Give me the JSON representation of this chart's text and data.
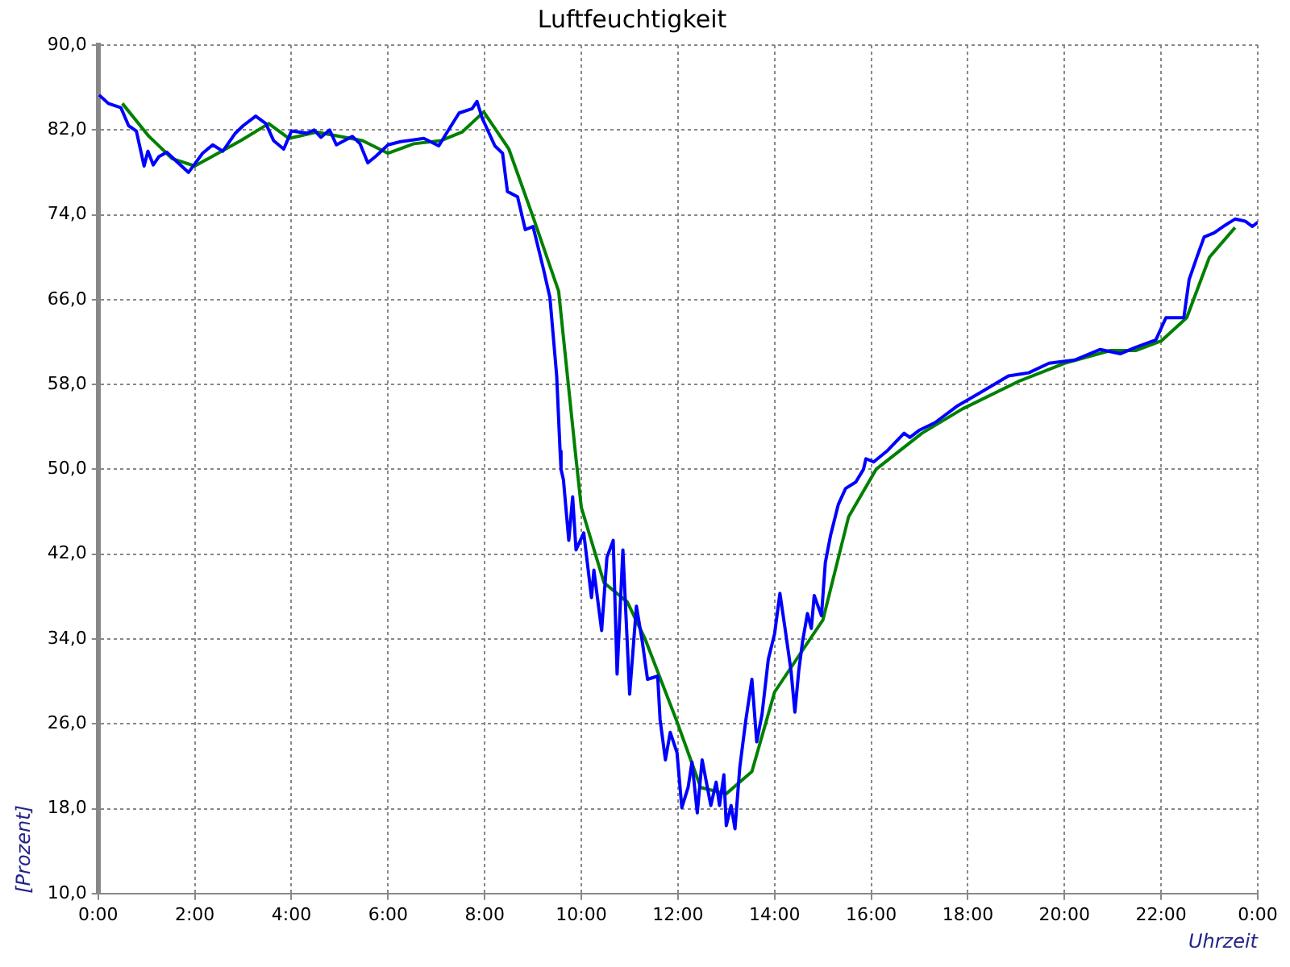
{
  "chart_data": {
    "type": "line",
    "title": "Luftfeuchtigkeit",
    "xlabel": "Uhrzeit",
    "ylabel": "[Prozent]",
    "xlim": [
      0,
      24
    ],
    "xticks": [
      {
        "value": 0,
        "label": "0:00"
      },
      {
        "value": 2,
        "label": "2:00"
      },
      {
        "value": 4,
        "label": "4:00"
      },
      {
        "value": 6,
        "label": "6:00"
      },
      {
        "value": 8,
        "label": "8:00"
      },
      {
        "value": 10,
        "label": "10:00"
      },
      {
        "value": 12,
        "label": "12:00"
      },
      {
        "value": 14,
        "label": "14:00"
      },
      {
        "value": 16,
        "label": "16:00"
      },
      {
        "value": 18,
        "label": "18:00"
      },
      {
        "value": 20,
        "label": "20:00"
      },
      {
        "value": 22,
        "label": "22:00"
      },
      {
        "value": 24,
        "label": "0:00"
      }
    ],
    "ylim": [
      10,
      90
    ],
    "yticks": [
      {
        "value": 10,
        "label": "10,0"
      },
      {
        "value": 18,
        "label": "18,0"
      },
      {
        "value": 26,
        "label": "26,0"
      },
      {
        "value": 34,
        "label": "34,0"
      },
      {
        "value": 42,
        "label": "42,0"
      },
      {
        "value": 50,
        "label": "50,0"
      },
      {
        "value": 58,
        "label": "58,0"
      },
      {
        "value": 66,
        "label": "66,0"
      },
      {
        "value": 74,
        "label": "74,0"
      },
      {
        "value": 82,
        "label": "82,0"
      },
      {
        "value": 90,
        "label": "90,0"
      }
    ],
    "grid": true,
    "marker": "none",
    "line_style": "solid",
    "series": [
      {
        "color": "#0000ff",
        "x": [
          0.02,
          0.21,
          0.47,
          0.63,
          0.79,
          0.95,
          1.03,
          1.14,
          1.26,
          1.42,
          1.63,
          1.87,
          2.0,
          2.16,
          2.37,
          2.58,
          2.84,
          3.0,
          3.26,
          3.47,
          3.63,
          3.84,
          4.0,
          4.32,
          4.47,
          4.61,
          4.79,
          4.93,
          5.26,
          5.42,
          5.58,
          5.74,
          6.0,
          6.26,
          6.74,
          7.05,
          7.21,
          7.47,
          7.74,
          7.84,
          7.95,
          8.21,
          8.37,
          8.47,
          8.68,
          8.84,
          9.0,
          9.21,
          9.35,
          9.49,
          9.56,
          9.58,
          9.63,
          9.74,
          9.82,
          9.89,
          10.05,
          10.21,
          10.26,
          10.42,
          10.53,
          10.66,
          10.74,
          10.86,
          11.0,
          11.14,
          11.26,
          11.37,
          11.58,
          11.63,
          11.74,
          11.84,
          11.98,
          12.08,
          12.21,
          12.29,
          12.4,
          12.5,
          12.68,
          12.79,
          12.86,
          12.95,
          13.0,
          13.1,
          13.18,
          13.28,
          13.4,
          13.53,
          13.63,
          13.74,
          13.87,
          14.0,
          14.11,
          14.21,
          14.34,
          14.42,
          14.5,
          14.58,
          14.68,
          14.76,
          14.82,
          14.97,
          15.05,
          15.16,
          15.32,
          15.47,
          15.68,
          15.84,
          15.89,
          16.05,
          16.32,
          16.68,
          16.8,
          17.0,
          17.32,
          17.79,
          18.32,
          18.84,
          19.26,
          19.68,
          20.21,
          20.74,
          21.16,
          21.47,
          21.89,
          22.1,
          22.47,
          22.58,
          22.74,
          22.89,
          23.1,
          23.32,
          23.53,
          23.74,
          23.89,
          24.0
        ],
        "values": [
          85.3,
          84.5,
          84.1,
          82.4,
          81.9,
          78.6,
          80,
          78.7,
          79.5,
          79.9,
          79,
          78,
          78.8,
          79.8,
          80.6,
          80,
          81.7,
          82.4,
          83.3,
          82.6,
          81,
          80.2,
          81.9,
          81.7,
          82,
          81.3,
          82,
          80.6,
          81.4,
          80.7,
          78.9,
          79.5,
          80.6,
          80.9,
          81.2,
          80.5,
          81.7,
          83.6,
          84,
          84.7,
          83.1,
          80.5,
          79.8,
          76.2,
          75.7,
          72.6,
          72.9,
          69,
          66.2,
          58.8,
          51.7,
          50,
          49,
          43.3,
          47.4,
          42.4,
          44,
          37.9,
          40.5,
          34.8,
          41.7,
          43.3,
          30.7,
          42.4,
          28.8,
          37.1,
          33.8,
          30.2,
          30.5,
          26.4,
          22.6,
          25.2,
          23.3,
          18.1,
          20,
          22.4,
          17.6,
          22.6,
          18.3,
          20.5,
          18.3,
          21.2,
          16.4,
          18.3,
          16.1,
          21.9,
          26.2,
          30.2,
          24.3,
          26.9,
          32.1,
          34.5,
          38.3,
          35.2,
          31,
          27.1,
          31,
          33.8,
          36.4,
          35,
          38.1,
          36.2,
          41.2,
          43.8,
          46.7,
          48.2,
          48.8,
          50,
          51,
          50.7,
          51.7,
          53.4,
          53,
          53.7,
          54.4,
          56,
          57.4,
          58.8,
          59.1,
          60,
          60.3,
          61.3,
          60.9,
          61.5,
          62.2,
          64.3,
          64.3,
          67.9,
          70,
          71.9,
          72.3,
          73,
          73.6,
          73.4,
          72.9,
          73.3
        ]
      },
      {
        "color": "#008000",
        "x": [
          0.5,
          1.05,
          1.53,
          2.0,
          2.95,
          3.53,
          3.95,
          4.53,
          5.47,
          6.0,
          6.53,
          7.1,
          7.53,
          7.98,
          8.5,
          9.0,
          9.53,
          9.89,
          10.0,
          10.47,
          10.95,
          11.32,
          11.98,
          12.47,
          13.0,
          13.53,
          14.0,
          15.0,
          15.53,
          16.1,
          17.05,
          17.89,
          19.05,
          20.0,
          20.95,
          21.47,
          22.0,
          22.53,
          23.0,
          23.53
        ],
        "values": [
          84.5,
          81.4,
          79.3,
          78.6,
          81,
          82.6,
          81.2,
          81.8,
          81,
          79.8,
          80.7,
          81,
          81.8,
          83.7,
          80.2,
          73.8,
          66.8,
          51,
          46.4,
          39.3,
          37.5,
          34,
          26.2,
          20,
          19.4,
          21.5,
          29,
          35.8,
          45.5,
          50,
          53.4,
          55.7,
          58.3,
          60,
          61.2,
          61.2,
          62.1,
          64.3,
          70,
          72.8
        ]
      }
    ]
  }
}
